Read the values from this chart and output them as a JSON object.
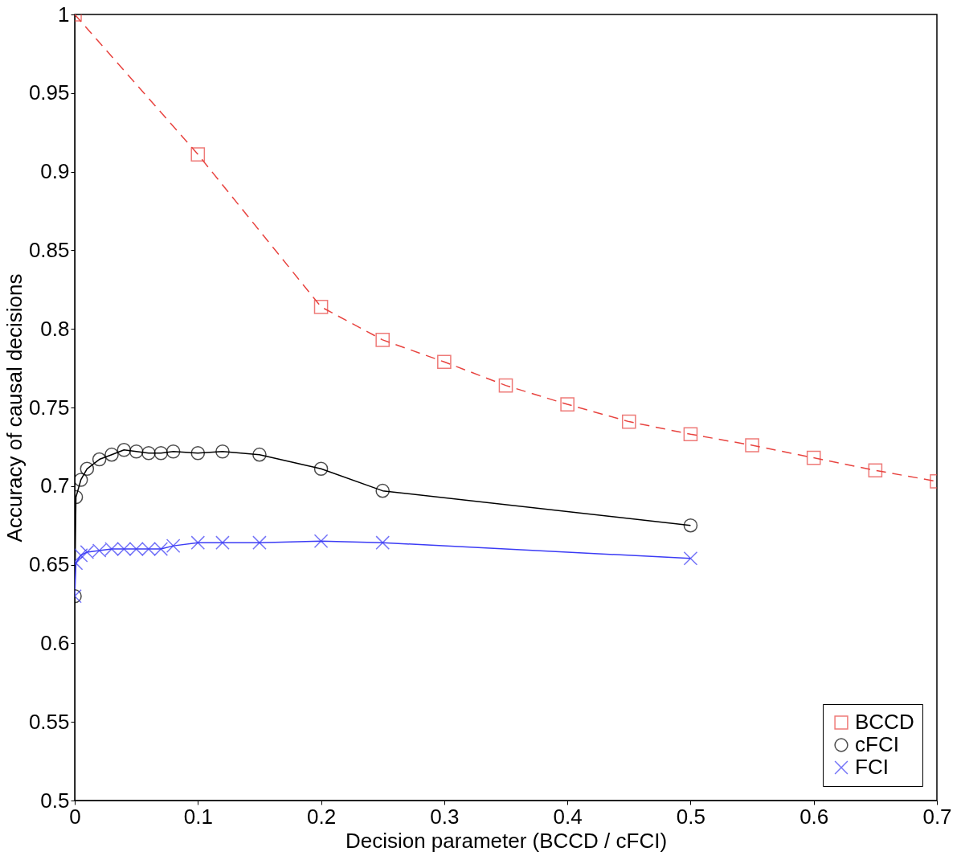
{
  "chart_data": {
    "type": "line",
    "xlabel": "Decision parameter (BCCD / cFCI)",
    "ylabel": "Accuracy of causal decisions",
    "xlim": [
      0,
      0.7
    ],
    "xticks": [
      0,
      0.1,
      0.2,
      0.3,
      0.4,
      0.5,
      0.6,
      0.7
    ],
    "ylim": [
      0.5,
      1
    ],
    "yticks": [
      0.5,
      0.55,
      0.6,
      0.65,
      0.7,
      0.75,
      0.8,
      0.85,
      0.9,
      0.95,
      1
    ],
    "grid": false,
    "legend": "bottom right",
    "series": [
      {
        "name": "BCCD",
        "color": "#e8433f",
        "marker": "square",
        "line_style": "dashed",
        "x": [
          0,
          0.1,
          0.2,
          0.25,
          0.3,
          0.35,
          0.4,
          0.45,
          0.5,
          0.55,
          0.6,
          0.65,
          0.7
        ],
        "values": [
          1.0,
          0.911,
          0.814,
          0.793,
          0.779,
          0.764,
          0.752,
          0.741,
          0.733,
          0.726,
          0.718,
          0.71,
          0.703
        ]
      },
      {
        "name": "cFCI",
        "color": "#000000",
        "marker": "circle",
        "line_style": "solid",
        "x": [
          0,
          0.001,
          0.005,
          0.01,
          0.02,
          0.03,
          0.04,
          0.05,
          0.06,
          0.07,
          0.08,
          0.1,
          0.12,
          0.15,
          0.2,
          0.25,
          0.5
        ],
        "values": [
          0.63,
          0.693,
          0.704,
          0.711,
          0.717,
          0.72,
          0.723,
          0.722,
          0.721,
          0.721,
          0.722,
          0.721,
          0.722,
          0.72,
          0.711,
          0.697,
          0.675
        ]
      },
      {
        "name": "FCI",
        "color": "#3b3bf5",
        "marker": "cross",
        "line_style": "solid",
        "x": [
          0,
          0.001,
          0.005,
          0.01,
          0.02,
          0.03,
          0.04,
          0.05,
          0.06,
          0.07,
          0.08,
          0.1,
          0.12,
          0.15,
          0.2,
          0.25,
          0.5
        ],
        "values": [
          0.63,
          0.651,
          0.656,
          0.658,
          0.659,
          0.66,
          0.66,
          0.66,
          0.66,
          0.66,
          0.662,
          0.664,
          0.664,
          0.664,
          0.665,
          0.664,
          0.654
        ]
      }
    ]
  }
}
